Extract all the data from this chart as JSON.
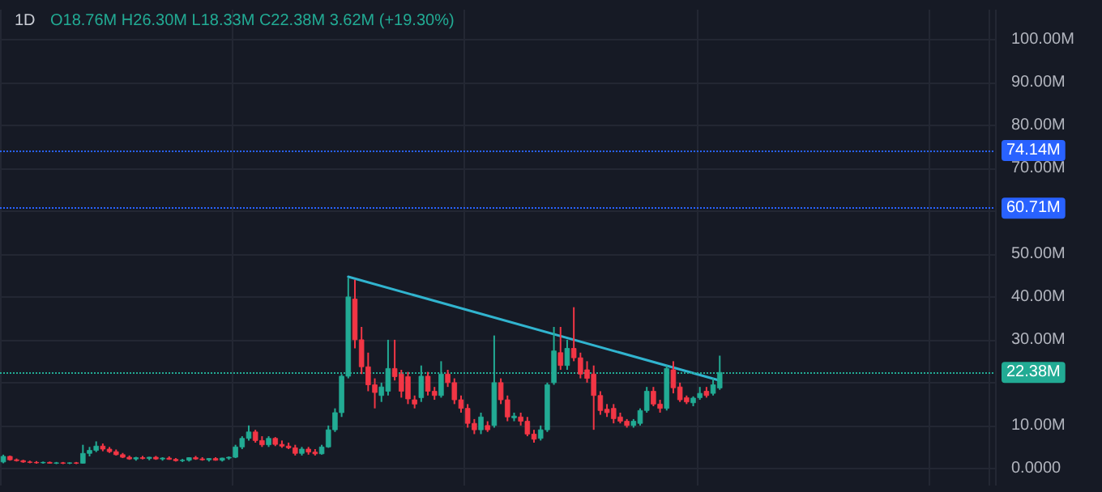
{
  "chart_data": {
    "type": "candlestick",
    "title": "1D",
    "annotations": [
      "O18.76M H26.30M L18.33M C22.38M 3.62M (+19.30%)"
    ],
    "categories": [
      null,
      null,
      null,
      null,
      null,
      null,
      null,
      null,
      null,
      null,
      null,
      null,
      null,
      null,
      null,
      null,
      null,
      null,
      null,
      null,
      null,
      null,
      null,
      null,
      null,
      null,
      null,
      null,
      null,
      null,
      null,
      null,
      null,
      null,
      null,
      null,
      null,
      null,
      null,
      null,
      null,
      null,
      null,
      null,
      null,
      null,
      null,
      null,
      null,
      null,
      null,
      null,
      null,
      null,
      null,
      null,
      null,
      null,
      null,
      null,
      null,
      null,
      null,
      null,
      null,
      null,
      null,
      null,
      null,
      null,
      null,
      null,
      null,
      null,
      null,
      null,
      null,
      null,
      null,
      null,
      null,
      null,
      null,
      null,
      null,
      null,
      null,
      null,
      null,
      null,
      null,
      null,
      null,
      null,
      null,
      null,
      null,
      null,
      null,
      null,
      null,
      null,
      null,
      null,
      null,
      null,
      null,
      null,
      null,
      null,
      null,
      null,
      null,
      null,
      null,
      null,
      null,
      null,
      null,
      null,
      null,
      null,
      null,
      null,
      null,
      null,
      null,
      null,
      null,
      null,
      null,
      null,
      null,
      null,
      null,
      null,
      null,
      null,
      null,
      null,
      null,
      null,
      null,
      null,
      null,
      null,
      null,
      null,
      null,
      null
    ],
    "ohlc": [
      [
        1.5,
        3.2,
        1.2,
        2.8
      ],
      [
        2.8,
        3.0,
        1.8,
        2.0
      ],
      [
        2.0,
        2.3,
        1.6,
        1.8
      ],
      [
        1.8,
        2.0,
        1.3,
        1.5
      ],
      [
        1.5,
        1.8,
        1.2,
        1.4
      ],
      [
        1.4,
        1.7,
        1.1,
        1.3
      ],
      [
        1.3,
        1.6,
        1.1,
        1.4
      ],
      [
        1.4,
        1.6,
        1.1,
        1.2
      ],
      [
        1.2,
        1.5,
        1.0,
        1.3
      ],
      [
        1.3,
        1.5,
        1.0,
        1.2
      ],
      [
        1.2,
        1.4,
        1.0,
        1.3
      ],
      [
        1.3,
        1.5,
        1.0,
        1.2
      ],
      [
        1.2,
        5.5,
        1.1,
        3.5
      ],
      [
        3.5,
        5.0,
        2.8,
        4.2
      ],
      [
        4.2,
        6.3,
        3.8,
        5.2
      ],
      [
        5.2,
        5.8,
        4.0,
        4.5
      ],
      [
        4.5,
        5.0,
        3.6,
        3.9
      ],
      [
        3.9,
        4.4,
        3.0,
        3.2
      ],
      [
        3.2,
        3.6,
        2.4,
        2.6
      ],
      [
        2.6,
        3.0,
        2.0,
        2.2
      ],
      [
        2.2,
        2.7,
        1.8,
        2.5
      ],
      [
        2.5,
        2.9,
        2.1,
        2.3
      ],
      [
        2.3,
        2.7,
        1.9,
        2.6
      ],
      [
        2.6,
        2.9,
        2.0,
        2.2
      ],
      [
        2.2,
        2.6,
        1.8,
        2.4
      ],
      [
        2.4,
        2.8,
        2.0,
        2.1
      ],
      [
        2.1,
        2.4,
        1.6,
        1.8
      ],
      [
        1.8,
        2.2,
        1.5,
        1.9
      ],
      [
        1.9,
        2.6,
        1.6,
        2.5
      ],
      [
        2.5,
        2.9,
        2.0,
        2.2
      ],
      [
        2.2,
        2.6,
        1.8,
        2.0
      ],
      [
        2.0,
        2.4,
        1.6,
        2.3
      ],
      [
        2.3,
        2.6,
        1.8,
        1.9
      ],
      [
        1.9,
        2.5,
        1.6,
        2.4
      ],
      [
        2.4,
        2.8,
        2.0,
        2.6
      ],
      [
        2.6,
        5.5,
        2.4,
        5.0
      ],
      [
        5.0,
        7.5,
        4.5,
        7.0
      ],
      [
        7.0,
        10.0,
        6.5,
        8.5
      ],
      [
        8.5,
        9.0,
        6.0,
        6.5
      ],
      [
        6.5,
        7.5,
        5.0,
        5.5
      ],
      [
        5.5,
        7.5,
        5.0,
        7.0
      ],
      [
        7.0,
        7.3,
        5.2,
        5.6
      ],
      [
        5.6,
        6.5,
        4.8,
        5.2
      ],
      [
        5.2,
        6.0,
        4.5,
        4.8
      ],
      [
        4.8,
        5.5,
        3.0,
        3.5
      ],
      [
        3.5,
        5.0,
        3.0,
        4.5
      ],
      [
        4.5,
        5.0,
        3.2,
        3.8
      ],
      [
        3.8,
        4.5,
        3.0,
        3.4
      ],
      [
        3.4,
        5.5,
        3.2,
        5.0
      ],
      [
        5.0,
        10.0,
        4.8,
        9.0
      ],
      [
        9.0,
        14.0,
        8.5,
        13.0
      ],
      [
        13.0,
        22.0,
        12.0,
        21.5
      ],
      [
        21.5,
        44.4,
        21.0,
        40.0
      ],
      [
        39.5,
        44.0,
        28.0,
        30.0
      ],
      [
        30.0,
        33.0,
        22.0,
        23.7
      ],
      [
        23.7,
        27.0,
        18.0,
        19.5
      ],
      [
        19.5,
        21.0,
        14.0,
        17.7
      ],
      [
        17.0,
        20.0,
        15.5,
        19.0
      ],
      [
        18.0,
        30.0,
        17.0,
        23.3
      ],
      [
        23.3,
        30.0,
        20.5,
        21.4
      ],
      [
        22.0,
        23.0,
        16.5,
        18.0
      ],
      [
        21.4,
        22.5,
        15.0,
        16.2
      ],
      [
        16.0,
        17.0,
        14.0,
        15.0
      ],
      [
        16.5,
        24.0,
        15.5,
        21.5
      ],
      [
        21.5,
        22.5,
        17.0,
        18.0
      ],
      [
        18.0,
        19.0,
        16.0,
        17.0
      ],
      [
        17.0,
        25.0,
        16.5,
        22.0
      ],
      [
        22.0,
        23.0,
        19.0,
        20.0
      ],
      [
        20.0,
        21.0,
        15.0,
        16.0
      ],
      [
        16.0,
        17.0,
        13.0,
        14.0
      ],
      [
        14.0,
        15.0,
        9.5,
        10.5
      ],
      [
        10.5,
        11.5,
        8.0,
        9.0
      ],
      [
        9.0,
        13.0,
        8.0,
        12.0
      ],
      [
        10.0,
        11.0,
        8.5,
        9.0
      ],
      [
        10.0,
        31.0,
        9.5,
        20.0
      ],
      [
        20.0,
        21.0,
        15.0,
        16.0
      ],
      [
        16.0,
        17.0,
        11.0,
        12.0
      ],
      [
        11.8,
        13.0,
        11.0,
        12.2
      ],
      [
        12.0,
        13.0,
        10.0,
        11.0
      ],
      [
        11.0,
        12.0,
        7.5,
        8.0
      ],
      [
        8.0,
        9.0,
        6.0,
        6.8
      ],
      [
        7.0,
        10.0,
        6.5,
        9.0
      ],
      [
        9.0,
        20.0,
        8.5,
        19.5
      ],
      [
        20.0,
        33.0,
        19.5,
        27.4
      ],
      [
        27.0,
        33.0,
        23.0,
        24.0
      ],
      [
        24.0,
        30.0,
        23.0,
        28.0
      ],
      [
        28.0,
        37.6,
        25.0,
        25.8
      ],
      [
        25.8,
        27.0,
        21.0,
        22.0
      ],
      [
        23.0,
        25.0,
        20.0,
        21.0
      ],
      [
        22.0,
        24.0,
        9.0,
        17.0
      ],
      [
        17.0,
        18.0,
        12.5,
        13.5
      ],
      [
        13.8,
        15.0,
        12.0,
        13.0
      ],
      [
        14.0,
        15.0,
        10.5,
        11.6
      ],
      [
        12.0,
        13.0,
        10.5,
        11.0
      ],
      [
        11.0,
        11.5,
        9.5,
        10.0
      ],
      [
        10.0,
        11.5,
        9.5,
        11.0
      ],
      [
        10.5,
        14.0,
        10.0,
        13.5
      ],
      [
        13.5,
        19.0,
        13.0,
        18.0
      ],
      [
        18.0,
        19.0,
        14.5,
        15.0
      ],
      [
        15.0,
        16.0,
        13.0,
        14.0
      ],
      [
        14.0,
        24.0,
        13.5,
        23.3
      ],
      [
        23.0,
        25.0,
        17.5,
        18.8
      ],
      [
        19.0,
        20.0,
        15.5,
        16.0
      ],
      [
        16.5,
        17.0,
        15.0,
        15.5
      ],
      [
        15.3,
        16.8,
        14.5,
        16.4
      ],
      [
        16.5,
        19.0,
        16.0,
        17.5
      ],
      [
        18.0,
        19.0,
        16.5,
        17.0
      ],
      [
        17.5,
        21.0,
        17.0,
        19.5
      ],
      [
        18.76,
        26.3,
        18.33,
        22.38
      ],
      null,
      null,
      null,
      null,
      null,
      null,
      null,
      null,
      null,
      null,
      null,
      null,
      null,
      null,
      null,
      null,
      null,
      null,
      null,
      null,
      null,
      null,
      null,
      null,
      null,
      null,
      null,
      null,
      null,
      null,
      null,
      null,
      null,
      null,
      null,
      null,
      null,
      null,
      null,
      null,
      null
    ],
    "colors": [
      "#22ab94",
      "#f23645",
      "#f23645",
      "#f23645",
      "#f23645",
      "#f23645",
      "#22ab94",
      "#f23645",
      "#22ab94",
      "#f23645",
      "#22ab94",
      "#f23645",
      "#22ab94",
      "#22ab94",
      "#22ab94",
      "#f23645",
      "#f23645",
      "#f23645",
      "#f23645",
      "#f23645",
      "#22ab94",
      "#f23645",
      "#22ab94",
      "#f23645",
      "#22ab94",
      "#f23645",
      "#f23645",
      "#22ab94",
      "#22ab94",
      "#f23645",
      "#f23645",
      "#22ab94",
      "#f23645",
      "#22ab94",
      "#22ab94",
      "#22ab94",
      "#22ab94",
      "#22ab94",
      "#f23645",
      "#f23645",
      "#22ab94",
      "#f23645",
      "#f23645",
      "#f23645",
      "#f23645",
      "#22ab94",
      "#f23645",
      "#f23645",
      "#22ab94",
      "#22ab94",
      "#22ab94",
      "#22ab94",
      "#22ab94",
      "#f23645",
      "#f23645",
      "#f23645",
      "#f23645",
      "#22ab94",
      "#22ab94",
      "#f23645",
      "#f23645",
      "#f23645",
      "#f23645",
      "#22ab94",
      "#f23645",
      "#f23645",
      "#22ab94",
      "#f23645",
      "#f23645",
      "#f23645",
      "#f23645",
      "#f23645",
      "#22ab94",
      "#f23645",
      "#22ab94",
      "#f23645",
      "#f23645",
      "#22ab94",
      "#f23645",
      "#f23645",
      "#f23645",
      "#22ab94",
      "#22ab94",
      "#22ab94",
      "#f23645",
      "#22ab94",
      "#f23645",
      "#f23645",
      "#f23645",
      "#f23645",
      "#f23645",
      "#f23645",
      "#f23645",
      "#f23645",
      "#f23645",
      "#22ab94",
      "#22ab94",
      "#22ab94",
      "#f23645",
      "#f23645",
      "#22ab94",
      "#f23645",
      "#f23645",
      "#f23645",
      "#22ab94",
      "#22ab94",
      "#f23645",
      "#22ab94",
      "#22ab94",
      null,
      null,
      null,
      null,
      null,
      null,
      null,
      null,
      null,
      null,
      null,
      null,
      null,
      null,
      null,
      null,
      null,
      null,
      null,
      null,
      null,
      null,
      null,
      null,
      null,
      null,
      null,
      null,
      null,
      null,
      null,
      null,
      null,
      null,
      null,
      null,
      null,
      null,
      null,
      null,
      null
    ],
    "series": [
      {
        "type": "line",
        "color": "#31b4cf",
        "values": [
          null,
          null,
          null,
          null,
          null,
          null,
          null,
          null,
          null,
          null,
          null,
          null,
          null,
          null,
          null,
          null,
          null,
          null,
          null,
          null,
          null,
          null,
          null,
          null,
          null,
          null,
          null,
          null,
          null,
          null,
          null,
          null,
          null,
          null,
          null,
          null,
          null,
          null,
          null,
          null,
          null,
          null,
          null,
          null,
          null,
          null,
          null,
          null,
          null,
          null,
          null,
          null,
          44.7,
          null,
          null,
          null,
          null,
          null,
          null,
          null,
          null,
          null,
          null,
          null,
          null,
          null,
          null,
          null,
          null,
          null,
          null,
          null,
          null,
          null,
          null,
          null,
          null,
          null,
          null,
          null,
          null,
          null,
          null,
          null,
          null,
          null,
          null,
          null,
          null,
          null,
          null,
          null,
          null,
          null,
          null,
          null,
          null,
          null,
          null,
          null,
          null,
          null,
          null,
          null,
          null,
          null,
          null,
          null,
          20.5,
          null,
          null,
          null,
          null,
          null,
          null,
          null,
          null,
          null,
          null,
          null,
          null,
          null,
          null,
          null,
          null,
          null,
          null,
          null,
          null,
          null,
          null,
          null,
          null,
          null,
          null,
          null,
          null,
          null,
          null,
          null,
          null,
          null,
          null,
          null,
          null,
          null,
          null,
          null,
          null,
          null
        ]
      }
    ],
    "ylim": [
      -4,
      107
    ],
    "yticks": [
      {
        "value": 0,
        "label": "0.0000"
      },
      {
        "value": 10,
        "label": "10.00M"
      },
      {
        "value": 20,
        "label": null
      },
      {
        "value": 30,
        "label": "30.00M"
      },
      {
        "value": 40,
        "label": "40.00M"
      },
      {
        "value": 50,
        "label": "50.00M"
      },
      {
        "value": 60,
        "label": null
      },
      {
        "value": 70,
        "label": "70.00M"
      },
      {
        "value": 80,
        "label": "80.00M"
      },
      {
        "value": 90,
        "label": "90.00M"
      },
      {
        "value": 100,
        "label": "100.00M"
      }
    ],
    "ref_lines": [
      {
        "axis": "y",
        "value": 74.14,
        "label": "74.14M",
        "color": "#2962ff",
        "line_style": "dotted"
      },
      {
        "axis": "y",
        "value": 60.71,
        "label": "60.71M",
        "color": "#2962ff",
        "line_style": "dotted"
      },
      {
        "axis": "y",
        "value": 22.38,
        "label": "22.38M",
        "color": "#22ab94",
        "line_style": "dotted"
      }
    ],
    "grid": true,
    "tick_labels": "y"
  }
}
